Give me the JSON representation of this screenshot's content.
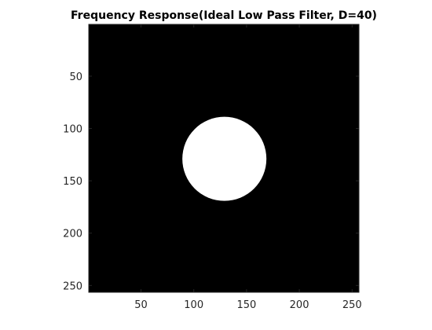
{
  "chart_data": {
    "type": "heatmap",
    "title": "Frequency Response(Ideal Low Pass Filter, D=40)",
    "xlabel": "",
    "ylabel": "",
    "image_size": [
      256,
      256
    ],
    "xlim": [
      0.5,
      256.5
    ],
    "ylim": [
      0.5,
      256.5
    ],
    "y_direction": "reversed",
    "x_ticks": [
      50,
      100,
      150,
      200,
      250
    ],
    "y_ticks": [
      50,
      100,
      150,
      200,
      250
    ],
    "filter": {
      "kind": "ideal low pass",
      "cutoff_radius": 40,
      "center": [
        129,
        129
      ],
      "pass_value": 1,
      "stop_value": 0
    },
    "colormap": "gray",
    "colors": {
      "pass": "#ffffff",
      "stop": "#000000",
      "axes": "#262626"
    },
    "grid": false,
    "legend": "none"
  }
}
